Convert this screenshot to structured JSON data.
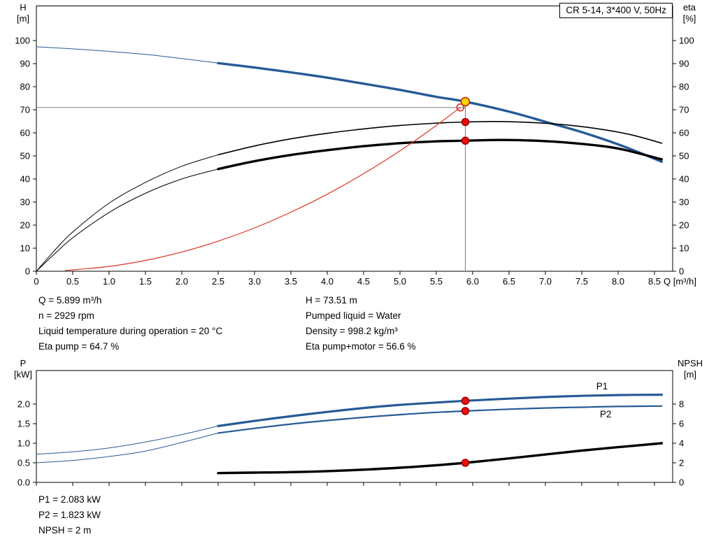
{
  "top_info": {
    "left": [
      "Q = 5.899 m³/h",
      "n = 2929 rpm",
      "Liquid temperature during operation = 20 °C",
      "Eta pump = 64.7 %"
    ],
    "right": [
      "H = 73.51 m",
      "Pumped liquid = Water",
      "Density = 998.2 kg/m³",
      "Eta pump+motor = 56.6 %"
    ]
  },
  "bottom_info": [
    "P1 = 2.083 kW",
    "P2 = 1.823 kW",
    "NPSH = 2 m"
  ],
  "chart_data": [
    {
      "type": "line",
      "name": "hq-eta-chart",
      "title": "CR 5-14, 3*400 V, 50Hz",
      "xlabel": "Q [m³/h]",
      "ylabel_left": [
        "H",
        "[m]"
      ],
      "ylabel_right": [
        "eta",
        "[%]"
      ],
      "xlim": [
        0,
        8.75
      ],
      "ylim_left": [
        0,
        115
      ],
      "ylim_right": [
        0,
        115
      ],
      "grid": false,
      "legend": "none",
      "xticks": {
        "values": [
          0,
          0.5,
          1,
          1.5,
          2,
          2.5,
          3,
          3.5,
          4,
          4.5,
          5,
          5.5,
          6,
          6.5,
          7,
          7.5,
          8,
          8.5
        ],
        "labels": [
          "0",
          "0.5",
          "1.0",
          "1.5",
          "2.0",
          "2.5",
          "3.0",
          "3.5",
          "4.0",
          "4.5",
          "5.0",
          "5.5",
          "6.0",
          "6.5",
          "7.0",
          "7.5",
          "8.0",
          "8.5"
        ]
      },
      "yticks_left": {
        "values": [
          0,
          10,
          20,
          30,
          40,
          50,
          60,
          70,
          80,
          90,
          100
        ],
        "labels": [
          "0",
          "10",
          "20",
          "30",
          "40",
          "50",
          "60",
          "70",
          "80",
          "90",
          "100"
        ]
      },
      "yticks_right": {
        "values": [
          0,
          10,
          20,
          30,
          40,
          50,
          60,
          70,
          80,
          90,
          100
        ],
        "labels": [
          "0",
          "10",
          "20",
          "30",
          "40",
          "50",
          "60",
          "70",
          "80",
          "90",
          "100"
        ]
      },
      "guides": [
        {
          "name": "duty-head-line",
          "axis": "left",
          "color": "#808080",
          "width": 1,
          "from": [
            0,
            71
          ],
          "to": [
            5.899,
            71
          ]
        },
        {
          "name": "duty-flow-line",
          "axis": "left",
          "color": "#808080",
          "width": 1,
          "from": [
            5.899,
            0
          ],
          "to": [
            5.899,
            73.51
          ]
        }
      ],
      "series": [
        {
          "name": "head-curve-low-range",
          "axis": "left",
          "color": "#265a96",
          "width": 1,
          "points": [
            [
              0,
              97.3
            ],
            [
              0.5,
              96.4
            ],
            [
              1,
              95.3
            ],
            [
              1.5,
              94.0
            ],
            [
              2,
              92.2
            ],
            [
              2.5,
              90.2
            ]
          ]
        },
        {
          "name": "head-curve",
          "axis": "left",
          "color": "#265a96",
          "width": 3.4,
          "points": [
            [
              2.5,
              90.2
            ],
            [
              3,
              88.3
            ],
            [
              3.5,
              86.2
            ],
            [
              4,
              83.9
            ],
            [
              4.5,
              81.3
            ],
            [
              5,
              78.6
            ],
            [
              5.5,
              75.6
            ],
            [
              5.899,
              73.51
            ],
            [
              6.5,
              69.2
            ],
            [
              7,
              64.8
            ],
            [
              7.5,
              60.3
            ],
            [
              8,
              55.0
            ],
            [
              8.6,
              47.5
            ]
          ]
        },
        {
          "name": "eta-pump-curve-low-range",
          "axis": "right",
          "color": "#000000",
          "width": 1,
          "points": [
            [
              0,
              0
            ],
            [
              0.25,
              9
            ],
            [
              0.5,
              17
            ],
            [
              1,
              29.5
            ],
            [
              1.5,
              38.5
            ],
            [
              2,
              45.5
            ],
            [
              2.5,
              50.5
            ]
          ]
        },
        {
          "name": "eta-pump-curve",
          "axis": "right",
          "color": "#000000",
          "width": 1.6,
          "points": [
            [
              2.5,
              50.5
            ],
            [
              3,
              54.3
            ],
            [
              3.5,
              57.4
            ],
            [
              4,
              59.8
            ],
            [
              4.5,
              61.7
            ],
            [
              5,
              63.2
            ],
            [
              5.5,
              64.2
            ],
            [
              5.899,
              64.7
            ],
            [
              6.3,
              64.9
            ],
            [
              6.8,
              64.5
            ],
            [
              7.3,
              63.4
            ],
            [
              7.8,
              61.4
            ],
            [
              8.2,
              59.0
            ],
            [
              8.6,
              55.5
            ]
          ]
        },
        {
          "name": "eta-pump-motor-curve-low-range",
          "axis": "right",
          "color": "#000000",
          "width": 1,
          "points": [
            [
              0,
              0
            ],
            [
              0.25,
              7.5
            ],
            [
              0.5,
              14.5
            ],
            [
              1,
              25.5
            ],
            [
              1.5,
              33.8
            ],
            [
              2,
              40.0
            ],
            [
              2.5,
              44.3
            ]
          ]
        },
        {
          "name": "eta-pump-motor-curve",
          "axis": "right",
          "color": "#000000",
          "width": 3.4,
          "points": [
            [
              2.5,
              44.3
            ],
            [
              3,
              47.7
            ],
            [
              3.5,
              50.4
            ],
            [
              4,
              52.5
            ],
            [
              4.5,
              54.2
            ],
            [
              5,
              55.5
            ],
            [
              5.5,
              56.3
            ],
            [
              5.899,
              56.6
            ],
            [
              6.4,
              56.9
            ],
            [
              7,
              56.4
            ],
            [
              7.5,
              55.2
            ],
            [
              8,
              53.2
            ],
            [
              8.6,
              48.5
            ]
          ]
        },
        {
          "name": "system-curve",
          "axis": "left",
          "color": "#dd3322",
          "width": 1.2,
          "points": [
            [
              0.4,
              0.33
            ],
            [
              1,
              2.09
            ],
            [
              1.5,
              4.7
            ],
            [
              2,
              8.35
            ],
            [
              2.5,
              13.05
            ],
            [
              3,
              18.8
            ],
            [
              3.5,
              25.6
            ],
            [
              4,
              33.4
            ],
            [
              4.5,
              42.3
            ],
            [
              5,
              52.2
            ],
            [
              5.4,
              60.9
            ],
            [
              5.83,
              71
            ]
          ]
        }
      ],
      "markers": [
        {
          "name": "requested-duty-point",
          "shape": "circle-open",
          "axis": "left",
          "x": 5.83,
          "y": 71,
          "r": 5,
          "stroke": "#dd3322",
          "fill": "none"
        },
        {
          "name": "duty-point-head",
          "shape": "circle",
          "axis": "left",
          "x": 5.899,
          "y": 73.51,
          "r": 6,
          "fill": "#ffd400",
          "stroke": "#cc2200"
        },
        {
          "name": "duty-point-eta-pump",
          "shape": "circle",
          "axis": "right",
          "x": 5.899,
          "y": 64.7,
          "r": 5,
          "fill": "#e81010",
          "stroke": "#a00000"
        },
        {
          "name": "duty-point-eta-pump-motor",
          "shape": "circle",
          "axis": "right",
          "x": 5.899,
          "y": 56.6,
          "r": 5,
          "fill": "#e81010",
          "stroke": "#a00000"
        }
      ],
      "labels": []
    },
    {
      "type": "line",
      "name": "power-npsh-chart",
      "title": "",
      "xlabel": "",
      "ylabel_left": [
        "P",
        "[kW]"
      ],
      "ylabel_right": [
        "NPSH",
        "[m]"
      ],
      "xlim": [
        0,
        8.75
      ],
      "ylim_left": [
        0,
        2.857
      ],
      "ylim_right": [
        0,
        11.43
      ],
      "grid": false,
      "legend": "inline",
      "xticks": {
        "values": [
          0,
          0.5,
          1,
          1.5,
          2,
          2.5,
          3,
          3.5,
          4,
          4.5,
          5,
          5.5,
          6,
          6.5,
          7,
          7.5,
          8,
          8.5
        ],
        "labels": []
      },
      "yticks_left": {
        "values": [
          0,
          0.5,
          1,
          1.5,
          2
        ],
        "labels": [
          "0.0",
          "0.5",
          "1.0",
          "1.5",
          "2.0"
        ]
      },
      "yticks_right": {
        "values": [
          0,
          2,
          4,
          6,
          8
        ],
        "labels": [
          "0",
          "2",
          "4",
          "6",
          "8"
        ]
      },
      "guides": [],
      "series": [
        {
          "name": "p1-curve-low-range",
          "axis": "left",
          "color": "#265a96",
          "width": 1,
          "points": [
            [
              0,
              0.72
            ],
            [
              0.5,
              0.78
            ],
            [
              1,
              0.88
            ],
            [
              1.5,
              1.03
            ],
            [
              2,
              1.22
            ],
            [
              2.5,
              1.44
            ]
          ]
        },
        {
          "name": "p1-curve",
          "axis": "left",
          "color": "#265a96",
          "width": 3.2,
          "points": [
            [
              2.5,
              1.44
            ],
            [
              3,
              1.57
            ],
            [
              3.5,
              1.69
            ],
            [
              4,
              1.8
            ],
            [
              4.5,
              1.9
            ],
            [
              5,
              1.98
            ],
            [
              5.5,
              2.04
            ],
            [
              5.899,
              2.083
            ],
            [
              6.5,
              2.14
            ],
            [
              7,
              2.18
            ],
            [
              7.5,
              2.21
            ],
            [
              8,
              2.23
            ],
            [
              8.6,
              2.24
            ]
          ]
        },
        {
          "name": "p2-curve-low-range",
          "axis": "left",
          "color": "#265a96",
          "width": 1,
          "points": [
            [
              0,
              0.5
            ],
            [
              0.5,
              0.56
            ],
            [
              1,
              0.66
            ],
            [
              1.5,
              0.8
            ],
            [
              2,
              1.02
            ],
            [
              2.5,
              1.26
            ]
          ]
        },
        {
          "name": "p2-curve",
          "axis": "left",
          "color": "#265a96",
          "width": 2.2,
          "points": [
            [
              2.5,
              1.26
            ],
            [
              3,
              1.38
            ],
            [
              3.5,
              1.49
            ],
            [
              4,
              1.58
            ],
            [
              4.5,
              1.66
            ],
            [
              5,
              1.73
            ],
            [
              5.5,
              1.79
            ],
            [
              5.899,
              1.823
            ],
            [
              6.5,
              1.87
            ],
            [
              7,
              1.9
            ],
            [
              7.5,
              1.92
            ],
            [
              8,
              1.94
            ],
            [
              8.6,
              1.95
            ]
          ]
        },
        {
          "name": "npsh-curve",
          "axis": "right",
          "color": "#000000",
          "width": 3.4,
          "points": [
            [
              2.5,
              0.95
            ],
            [
              3,
              1.0
            ],
            [
              3.5,
              1.05
            ],
            [
              4,
              1.15
            ],
            [
              4.5,
              1.3
            ],
            [
              5,
              1.5
            ],
            [
              5.5,
              1.75
            ],
            [
              5.899,
              2.0
            ],
            [
              6.5,
              2.45
            ],
            [
              7,
              2.85
            ],
            [
              7.5,
              3.25
            ],
            [
              8,
              3.6
            ],
            [
              8.6,
              4.0
            ]
          ]
        }
      ],
      "markers": [
        {
          "name": "duty-point-p1",
          "shape": "circle",
          "axis": "left",
          "x": 5.899,
          "y": 2.083,
          "r": 5,
          "fill": "#e81010",
          "stroke": "#a00000"
        },
        {
          "name": "duty-point-p2",
          "shape": "circle",
          "axis": "left",
          "x": 5.899,
          "y": 1.823,
          "r": 5,
          "fill": "#e81010",
          "stroke": "#a00000"
        },
        {
          "name": "duty-point-npsh",
          "shape": "circle",
          "axis": "right",
          "x": 5.899,
          "y": 2,
          "r": 5,
          "fill": "#e81010",
          "stroke": "#a00000"
        }
      ],
      "labels": [
        {
          "name": "p1-series-label",
          "text": "P1",
          "axis": "left",
          "x": 7.7,
          "y": 2.375,
          "color": "#265a96"
        },
        {
          "name": "p2-series-label",
          "text": "P2",
          "axis": "left",
          "x": 7.75,
          "y": 1.66,
          "color": "#265a96"
        }
      ]
    }
  ]
}
